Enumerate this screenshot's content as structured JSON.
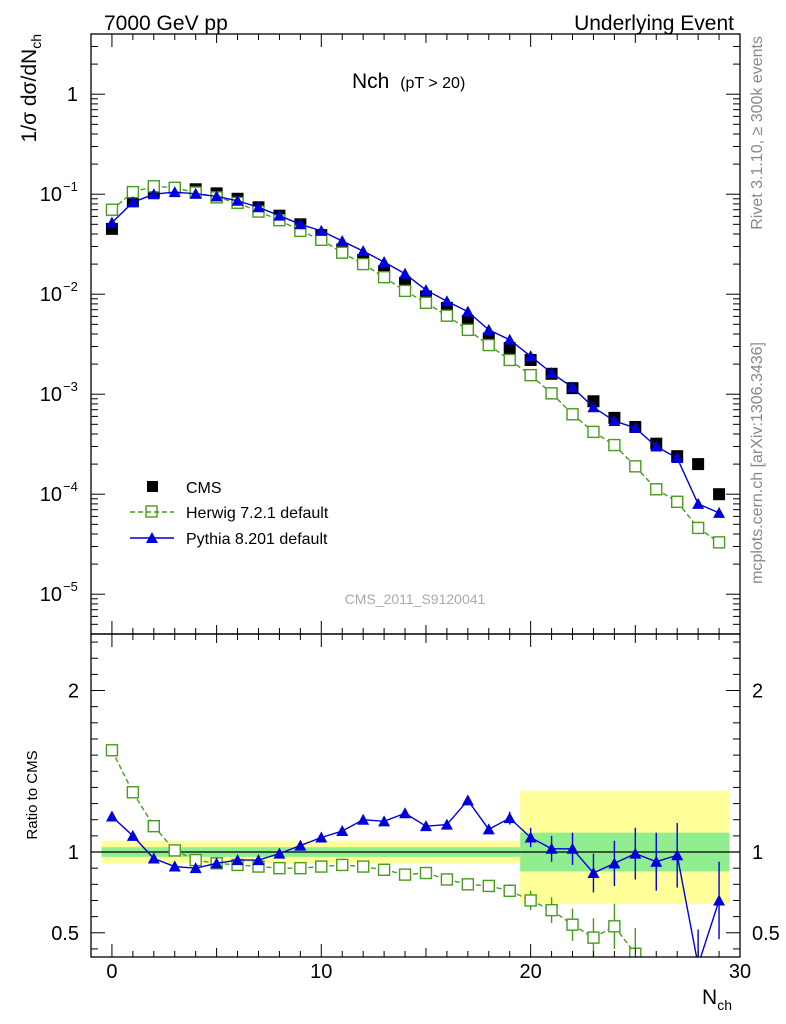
{
  "header": {
    "left": "7000 GeV pp",
    "right": "Underlying Event"
  },
  "side_labels": {
    "rivet": "Rivet 3.1.10, ≥ 300k events",
    "mcplots": "mcplots.cern.ch [arXiv:1306.3436]"
  },
  "colors": {
    "cms": "#000000",
    "herwig": "#4a9a1e",
    "pythia": "#0000dd",
    "band_inner": "#90ee90",
    "band_outer": "#ffff99",
    "watermark": "#aaaaaa"
  },
  "chart_data": [
    {
      "type": "scatter",
      "panel": "main",
      "title": "Nch",
      "title_sub": "(pT > 20)",
      "watermark": "CMS_2011_S9120041",
      "ylabel": "1/σ dσ/dN",
      "ylabel_sub": "ch",
      "yscale": "log",
      "xlim": [
        -1,
        30
      ],
      "ylim": [
        4e-06,
        4
      ],
      "y_ticks": [
        {
          "value": 1,
          "label": "1"
        },
        {
          "value": 0.1,
          "label": "10",
          "exp": "−1"
        },
        {
          "value": 0.01,
          "label": "10",
          "exp": "−2"
        },
        {
          "value": 0.001,
          "label": "10",
          "exp": "−3"
        },
        {
          "value": 0.0001,
          "label": "10",
          "exp": "−4"
        },
        {
          "value": 1e-05,
          "label": "10",
          "exp": "−5"
        }
      ],
      "legend": [
        {
          "key": "cms",
          "label": "CMS"
        },
        {
          "key": "herwig",
          "label": "Herwig 7.2.1 default"
        },
        {
          "key": "pythia",
          "label": "Pythia 8.201 default"
        }
      ],
      "x": [
        0,
        1,
        2,
        3,
        4,
        5,
        6,
        7,
        8,
        9,
        10,
        11,
        12,
        13,
        14,
        15,
        16,
        17,
        18,
        19,
        20,
        21,
        22,
        23,
        24,
        25,
        26,
        27,
        28,
        29
      ],
      "series": [
        {
          "key": "cms",
          "name": "CMS",
          "values": [
            0.045,
            0.085,
            0.105,
            0.115,
            0.112,
            0.102,
            0.09,
            0.074,
            0.061,
            0.05,
            0.039,
            0.028,
            0.022,
            0.017,
            0.013,
            0.0095,
            0.0073,
            0.0054,
            0.0036,
            0.0029,
            0.0022,
            0.0016,
            0.00115,
            0.00085,
            0.00058,
            0.00047,
            0.00032,
            0.00024,
            0.0002,
            0.0001
          ]
        },
        {
          "key": "herwig",
          "name": "Herwig 7.2.1 default",
          "values": [
            0.07,
            0.105,
            0.12,
            0.116,
            0.104,
            0.093,
            0.082,
            0.067,
            0.055,
            0.043,
            0.035,
            0.026,
            0.02,
            0.0148,
            0.0108,
            0.0082,
            0.0061,
            0.0044,
            0.0031,
            0.0022,
            0.00155,
            0.00102,
            0.00063,
            0.00042,
            0.00031,
            0.00019,
            0.000112,
            8.4e-05,
            4.6e-05,
            3.3e-05
          ]
        },
        {
          "key": "pythia",
          "name": "Pythia 8.201 default",
          "values": [
            0.052,
            0.083,
            0.1,
            0.105,
            0.101,
            0.095,
            0.086,
            0.074,
            0.061,
            0.05,
            0.043,
            0.034,
            0.027,
            0.021,
            0.016,
            0.011,
            0.0085,
            0.0067,
            0.0044,
            0.0035,
            0.0024,
            0.00163,
            0.00117,
            0.00074,
            0.00054,
            0.00046,
            0.0003,
            0.00023,
            8e-05,
            6.5e-05
          ]
        }
      ]
    },
    {
      "type": "scatter",
      "panel": "ratio",
      "ylabel": "Ratio to CMS",
      "xlabel": "N",
      "xlabel_sub": "ch",
      "xlim": [
        -1,
        30
      ],
      "ylim": [
        0.35,
        2.35
      ],
      "x_ticks": [
        0,
        10,
        20,
        30
      ],
      "y_ticks": [
        0.5,
        1,
        2
      ],
      "x": [
        0,
        1,
        2,
        3,
        4,
        5,
        6,
        7,
        8,
        9,
        10,
        11,
        12,
        13,
        14,
        15,
        16,
        17,
        18,
        19,
        20,
        21,
        22,
        23,
        24,
        25,
        26,
        27,
        28,
        29
      ],
      "band_inner": [
        {
          "x0": -0.5,
          "x1": 19.5,
          "lo": 0.97,
          "hi": 1.03
        },
        {
          "x0": 19.5,
          "x1": 29.5,
          "lo": 0.88,
          "hi": 1.12
        }
      ],
      "band_outer": [
        {
          "x0": -0.5,
          "x1": 19.5,
          "lo": 0.93,
          "hi": 1.07
        },
        {
          "x0": 19.5,
          "x1": 29.5,
          "lo": 0.68,
          "hi": 1.38
        }
      ],
      "series": [
        {
          "key": "herwig",
          "name": "Herwig 7.2.1 default",
          "values": [
            1.63,
            1.37,
            1.16,
            1.01,
            0.95,
            0.93,
            0.92,
            0.91,
            0.9,
            0.9,
            0.91,
            0.92,
            0.91,
            0.89,
            0.86,
            0.87,
            0.83,
            0.8,
            0.79,
            0.76,
            0.7,
            0.64,
            0.55,
            0.47,
            0.54,
            0.37,
            null,
            null,
            null,
            null
          ]
        },
        {
          "key": "pythia",
          "name": "Pythia 8.201 default",
          "values": [
            1.22,
            1.1,
            0.96,
            0.91,
            0.9,
            0.93,
            0.95,
            0.95,
            0.99,
            1.04,
            1.09,
            1.13,
            1.2,
            1.19,
            1.24,
            1.16,
            1.17,
            1.32,
            1.14,
            1.21,
            1.09,
            1.02,
            1.02,
            0.87,
            0.93,
            0.99,
            0.94,
            0.98,
            0.3,
            0.7
          ]
        }
      ]
    }
  ]
}
